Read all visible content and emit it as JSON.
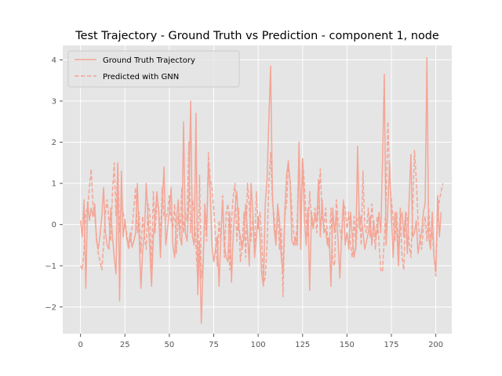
{
  "chart_data": {
    "type": "line",
    "title": "Test Trajectory - Ground Truth vs Prediction - component 1, node",
    "xlabel": "",
    "ylabel": "",
    "xlim": [
      -10,
      209
    ],
    "ylim": [
      -2.65,
      4.35
    ],
    "x_ticks": [
      0,
      25,
      50,
      75,
      100,
      125,
      150,
      175,
      200
    ],
    "y_ticks": [
      -2,
      -1,
      0,
      1,
      2,
      3,
      4
    ],
    "grid": true,
    "legend_position": "upper-left",
    "line_color": "#f4a596",
    "series": [
      {
        "name": "Ground Truth Trajectory",
        "style": "solid",
        "values": [
          0.1,
          -0.3,
          0.6,
          -1.55,
          0.55,
          0.1,
          0.4,
          0.2,
          0.5,
          -0.4,
          -0.6,
          -0.25,
          0.2,
          0.9,
          -0.2,
          -0.5,
          -0.6,
          0.4,
          -0.3,
          -0.8,
          -1.2,
          1.5,
          -1.85,
          1.3,
          -0.3,
          0.1,
          -0.35,
          -0.5,
          -0.2,
          -0.55,
          -0.4,
          -0.2,
          1.0,
          -0.3,
          -1.55,
          -0.6,
          -0.2,
          1.0,
          0.2,
          -0.6,
          -1.5,
          -0.3,
          0.2,
          0.8,
          0.3,
          -0.8,
          0.5,
          1.4,
          -0.5,
          -0.1,
          0.3,
          0.9,
          -0.5,
          -0.8,
          0.1,
          0.6,
          -0.3,
          -0.5,
          2.5,
          -0.2,
          -0.4,
          0.6,
          3.0,
          -0.3,
          -0.5,
          2.7,
          -1.7,
          -0.4,
          -2.4,
          -1.0,
          0.5,
          -0.2,
          1.5,
          0.8,
          -0.5,
          -0.9,
          -0.6,
          -0.3,
          -1.5,
          -0.3,
          0.6,
          -0.5,
          -0.8,
          -0.9,
          0.3,
          -1.4,
          -0.2,
          0.4,
          0.8,
          -0.1,
          -0.3,
          -0.6,
          -0.3,
          0.5,
          -0.2,
          -1.0,
          1.0,
          0.3,
          -0.8,
          -0.3,
          0.2,
          -0.3,
          -1.2,
          -1.5,
          0.5,
          1.1,
          2.5,
          3.85,
          0.8,
          -0.1,
          -0.5,
          0.5,
          0.1,
          -0.8,
          -1.2,
          0.3,
          1.2,
          1.55,
          1.0,
          -0.4,
          -0.5,
          -0.3,
          -0.5,
          2.0,
          -0.6,
          1.6,
          0.2,
          -0.5,
          0.4,
          -1.6,
          0.3,
          -0.1,
          0.2,
          0.1,
          1.1,
          -0.3,
          0.6,
          -0.2,
          -0.1,
          -0.5,
          -0.3,
          -1.5,
          0.4,
          -0.2,
          0.3,
          -0.4,
          -1.3,
          -0.2,
          0.6,
          -0.5,
          -0.2,
          -0.6,
          0.3,
          -0.3,
          -0.8,
          -0.5,
          1.9,
          -0.1,
          0.2,
          -0.2,
          -0.6,
          -0.4,
          -0.2,
          0.2,
          -0.5,
          0.1,
          -0.3,
          -0.2,
          0.3,
          -0.2,
          1.5,
          3.65,
          -0.5,
          0.4,
          1.5,
          0.2,
          -0.8,
          0.3,
          -0.1,
          -1.0,
          0.1,
          0.3,
          -0.3,
          0.3,
          -0.7,
          0.6,
          1.7,
          -0.3,
          -0.2,
          0.1,
          -0.7,
          -0.4,
          -0.2,
          0.3,
          0.5,
          4.05,
          -0.3,
          -0.6,
          0.3,
          -0.8,
          -1.1,
          0.7,
          -0.3,
          0.3
        ]
      },
      {
        "name": "Predicted with GNN",
        "style": "dashed",
        "values": [
          -1.0,
          -1.1,
          -0.6,
          0.3,
          0.4,
          0.9,
          1.35,
          0.5,
          0.2,
          -0.3,
          -0.7,
          -0.9,
          -1.1,
          -0.5,
          0.3,
          0.6,
          0.1,
          -0.4,
          0.8,
          1.5,
          0.2,
          1.5,
          -0.2,
          0.6,
          0.3,
          0.1,
          -0.2,
          -0.6,
          -0.4,
          -0.1,
          0.4,
          0.9,
          -0.2,
          0.3,
          -0.7,
          0.2,
          -0.3,
          -0.6,
          0.5,
          0.3,
          -1.1,
          0.8,
          -0.2,
          0.6,
          0.4,
          -0.3,
          0.9,
          0.2,
          0.1,
          0.3,
          0.7,
          0.1,
          -0.1,
          0.5,
          -0.7,
          0.2,
          -0.3,
          0.9,
          -0.2,
          0.3,
          0.1,
          2.0,
          -0.2,
          0.6,
          0.3,
          -0.5,
          -1.4,
          1.2,
          -1.3,
          -0.9,
          0.2,
          -0.4,
          1.75,
          1.1,
          0.9,
          0.4,
          -0.3,
          -1.0,
          0.1,
          -0.4,
          0.7,
          -0.8,
          0.3,
          0.5,
          -1.1,
          0.1,
          0.7,
          1.0,
          -0.4,
          0.4,
          -0.9,
          -0.5,
          0.3,
          -0.8,
          1.0,
          0.5,
          -0.4,
          0.2,
          -0.7,
          0.8,
          -0.1,
          0.3,
          -0.3,
          -1.4,
          -1.3,
          -0.5,
          1.0,
          1.75,
          0.6,
          0.2,
          -0.3,
          0.3,
          -0.6,
          -0.1,
          -1.75,
          0.2,
          0.5,
          1.4,
          1.1,
          0.3,
          -0.2,
          -0.5,
          0.1,
          1.8,
          0.2,
          1.6,
          1.0,
          0.1,
          -0.3,
          0.8,
          0.1,
          -0.1,
          0.4,
          -0.2,
          0.5,
          1.35,
          0.2,
          -0.1,
          0.4,
          -0.3,
          -0.6,
          0.4,
          -0.9,
          -1.0,
          0.6,
          0.1,
          -0.1,
          -0.4,
          0.5,
          0.4,
          -0.1,
          0.3,
          -0.5,
          -0.8,
          0.2,
          -0.6,
          0.1,
          0.3,
          -0.5,
          1.3,
          -0.1,
          -0.2,
          0.4,
          -0.3,
          0.5,
          -0.1,
          -0.6,
          0.2,
          -0.4,
          -1.1,
          -1.15,
          -0.3,
          0.5,
          2.5,
          1.1,
          0.6,
          0.1,
          -0.4,
          0.3,
          -0.6,
          0.4,
          -0.8,
          -1.1,
          0.3,
          0.2,
          -0.5,
          -0.8,
          0.4,
          1.8,
          1.1,
          0.1,
          -0.3,
          -0.6,
          -0.1,
          0.2,
          -0.4,
          0.4,
          -0.4,
          -0.2,
          -0.8,
          -1.25,
          0.2,
          0.6,
          0.8,
          1.0
        ]
      }
    ]
  }
}
